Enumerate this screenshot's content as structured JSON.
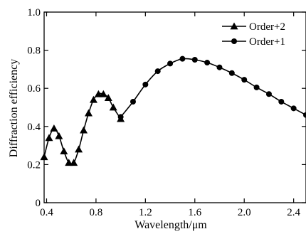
{
  "chart_data": {
    "type": "line",
    "xlabel": "Wavelength/μm",
    "ylabel": "Diffraction efficiency",
    "xlim": [
      0.38,
      2.5
    ],
    "ylim": [
      0,
      1.0
    ],
    "x_ticks": [
      "0.4",
      "0.8",
      "1.2",
      "1.6",
      "2.0",
      "2.4"
    ],
    "y_ticks": [
      "0",
      "0.2",
      "0.4",
      "0.6",
      "0.8",
      "1.0"
    ],
    "legend_position": "top-right",
    "grid": false,
    "series": [
      {
        "name": "Order+2",
        "marker": "triangle",
        "x": [
          0.38,
          0.42,
          0.46,
          0.5,
          0.54,
          0.58,
          0.62,
          0.66,
          0.7,
          0.74,
          0.78,
          0.82,
          0.86,
          0.9,
          0.94,
          1.0
        ],
        "y": [
          0.24,
          0.34,
          0.39,
          0.35,
          0.27,
          0.21,
          0.21,
          0.28,
          0.38,
          0.47,
          0.54,
          0.57,
          0.57,
          0.55,
          0.5,
          0.44
        ]
      },
      {
        "name": "Order+1",
        "marker": "circle",
        "x": [
          1.0,
          1.1,
          1.2,
          1.3,
          1.4,
          1.5,
          1.6,
          1.7,
          1.8,
          1.9,
          2.0,
          2.1,
          2.2,
          2.3,
          2.4,
          2.5
        ],
        "y": [
          0.45,
          0.53,
          0.62,
          0.69,
          0.73,
          0.755,
          0.75,
          0.735,
          0.71,
          0.68,
          0.645,
          0.605,
          0.57,
          0.53,
          0.495,
          0.46
        ]
      }
    ]
  }
}
